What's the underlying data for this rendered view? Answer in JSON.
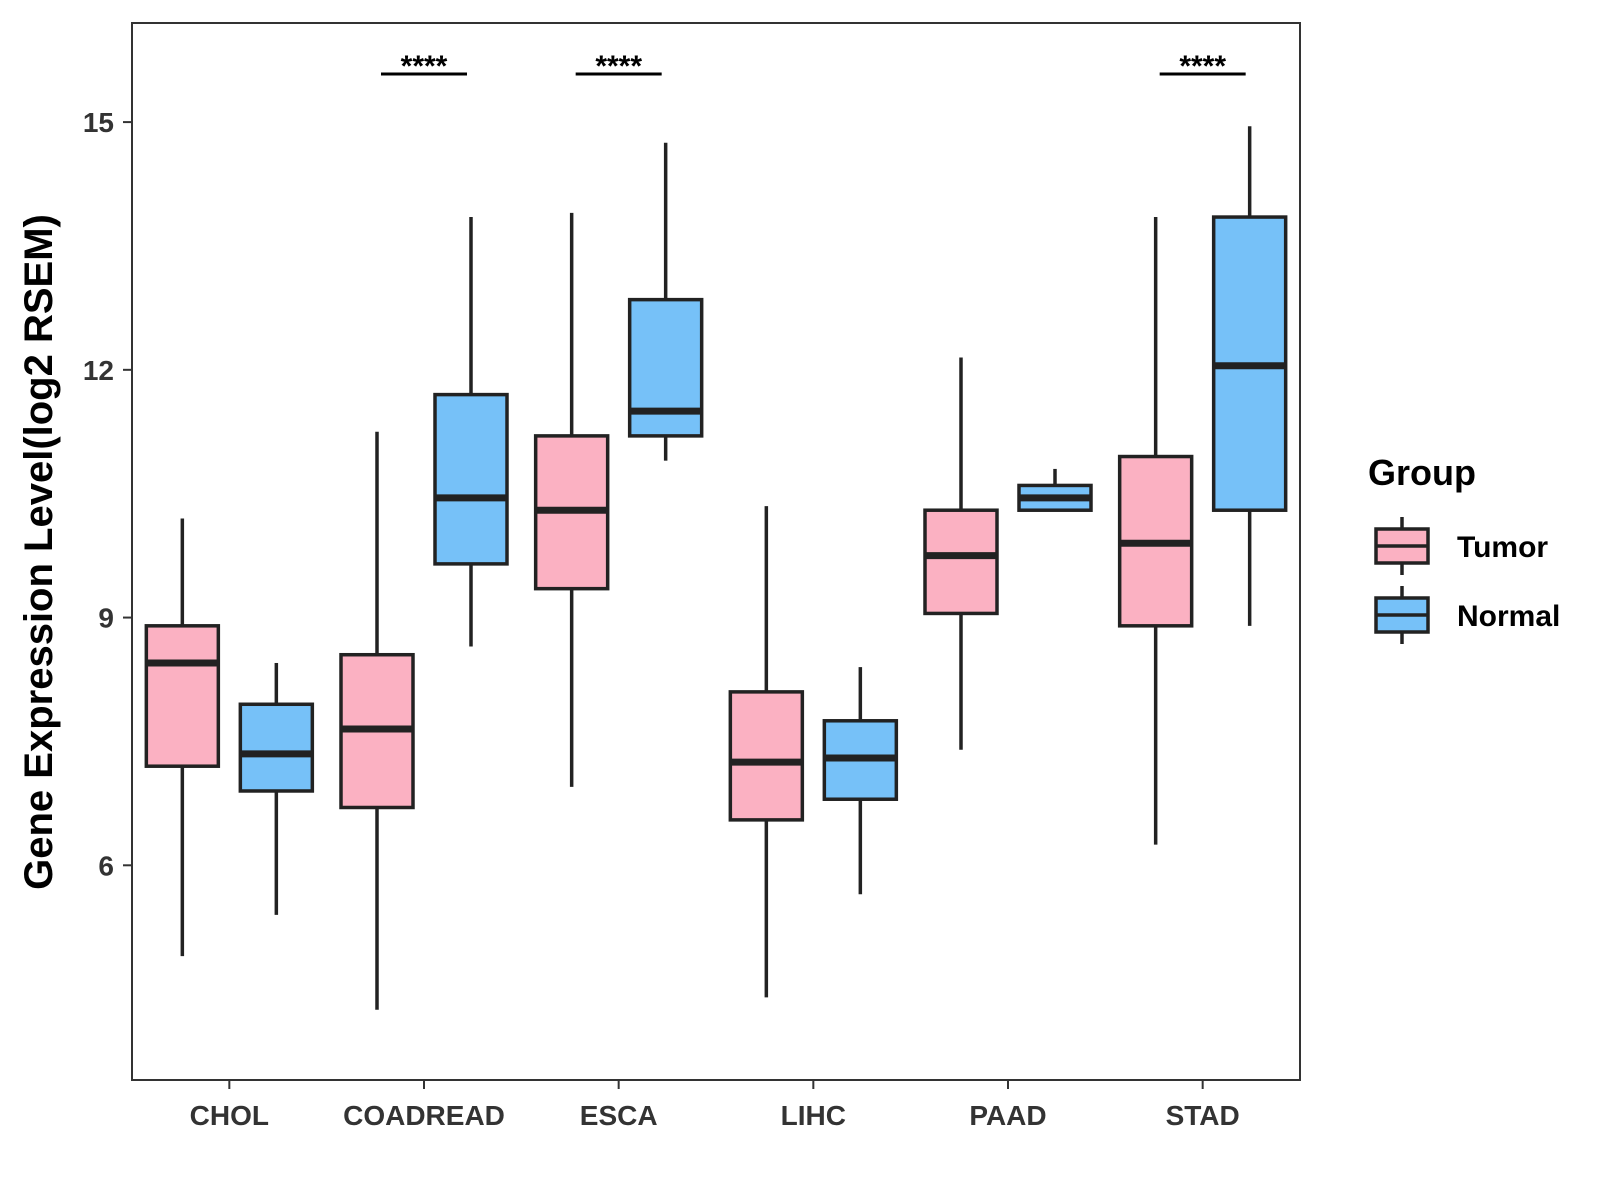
{
  "chart_data": {
    "type": "boxplot",
    "title": "",
    "xlabel": "",
    "ylabel": "Gene Expression Level(log2 RSEM)",
    "ylim": [
      3.4,
      16.2
    ],
    "yticks": [
      6,
      9,
      12,
      15
    ],
    "categories": [
      "CHOL",
      "COADREAD",
      "ESCA",
      "LIHC",
      "PAAD",
      "STAD"
    ],
    "series": [
      {
        "name": "Tumor",
        "color": "#FBB1C2",
        "boxes": [
          {
            "min": 4.9,
            "q1": 7.2,
            "median": 8.45,
            "q3": 8.9,
            "max": 10.2
          },
          {
            "min": 4.25,
            "q1": 6.7,
            "median": 7.65,
            "q3": 8.55,
            "max": 11.25
          },
          {
            "min": 6.95,
            "q1": 9.35,
            "median": 10.3,
            "q3": 11.2,
            "max": 13.9
          },
          {
            "min": 4.4,
            "q1": 6.55,
            "median": 7.25,
            "q3": 8.1,
            "max": 10.35
          },
          {
            "min": 7.4,
            "q1": 9.05,
            "median": 9.75,
            "q3": 10.3,
            "max": 12.15
          },
          {
            "min": 6.25,
            "q1": 8.9,
            "median": 9.9,
            "q3": 10.95,
            "max": 13.85
          }
        ]
      },
      {
        "name": "Normal",
        "color": "#76C1F8",
        "boxes": [
          {
            "min": 5.4,
            "q1": 6.9,
            "median": 7.35,
            "q3": 7.95,
            "max": 8.45
          },
          {
            "min": 8.65,
            "q1": 9.65,
            "median": 10.45,
            "q3": 11.7,
            "max": 13.85
          },
          {
            "min": 10.9,
            "q1": 11.2,
            "median": 11.5,
            "q3": 12.85,
            "max": 14.75
          },
          {
            "min": 5.65,
            "q1": 6.8,
            "median": 7.3,
            "q3": 7.75,
            "max": 8.4
          },
          {
            "min": 10.3,
            "q1": 10.3,
            "median": 10.45,
            "q3": 10.6,
            "max": 10.8
          },
          {
            "min": 8.9,
            "q1": 10.3,
            "median": 12.05,
            "q3": 13.85,
            "max": 14.95
          }
        ]
      }
    ],
    "significance": [
      {
        "category": "COADREAD",
        "label": "****"
      },
      {
        "category": "ESCA",
        "label": "****"
      },
      {
        "category": "STAD",
        "label": "****"
      }
    ],
    "legend": {
      "title": "Group",
      "position": "right",
      "entries": [
        "Tumor",
        "Normal"
      ]
    }
  }
}
